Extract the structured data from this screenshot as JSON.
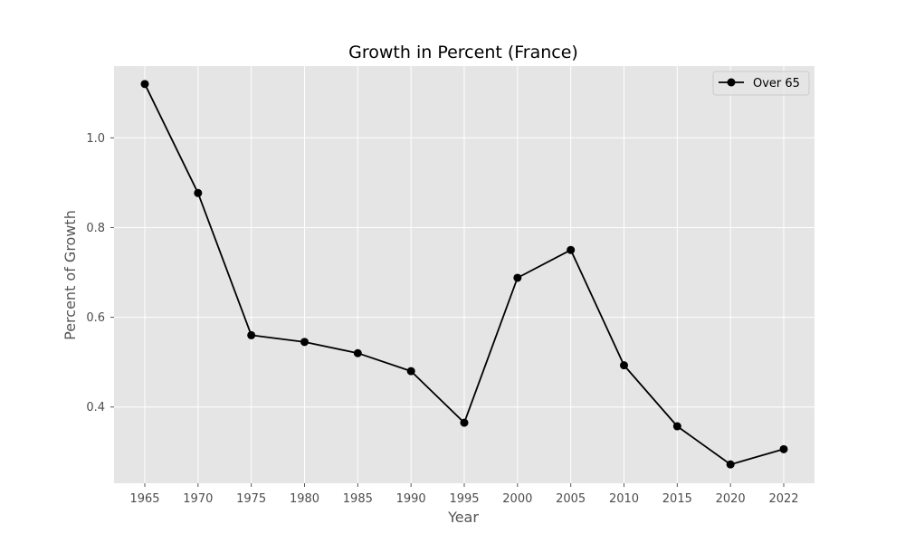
{
  "chart_data": {
    "type": "line",
    "title": "Growth in Percent (France)",
    "xlabel": "Year",
    "ylabel": "Percent of Growth",
    "categories": [
      "1965",
      "1970",
      "1975",
      "1980",
      "1985",
      "1990",
      "1995",
      "2000",
      "2005",
      "2010",
      "2015",
      "2020",
      "2022"
    ],
    "series": [
      {
        "name": "Over 65",
        "values": [
          1.12,
          0.877,
          0.56,
          0.545,
          0.52,
          0.48,
          0.365,
          0.688,
          0.75,
          0.493,
          0.357,
          0.272,
          0.306
        ],
        "color": "#000000",
        "marker": "circle"
      }
    ],
    "ylim": [
      0.23,
      1.16
    ],
    "yticks": [
      0.4,
      0.6,
      0.8,
      1.0
    ],
    "ytick_labels": [
      "0.4",
      "0.6",
      "0.8",
      "1.0"
    ],
    "grid": true,
    "legend_position": "top-right",
    "style": {
      "plot_background": "#e5e5e5",
      "grid_color": "#ffffff",
      "figure_background": "#ffffff"
    }
  }
}
